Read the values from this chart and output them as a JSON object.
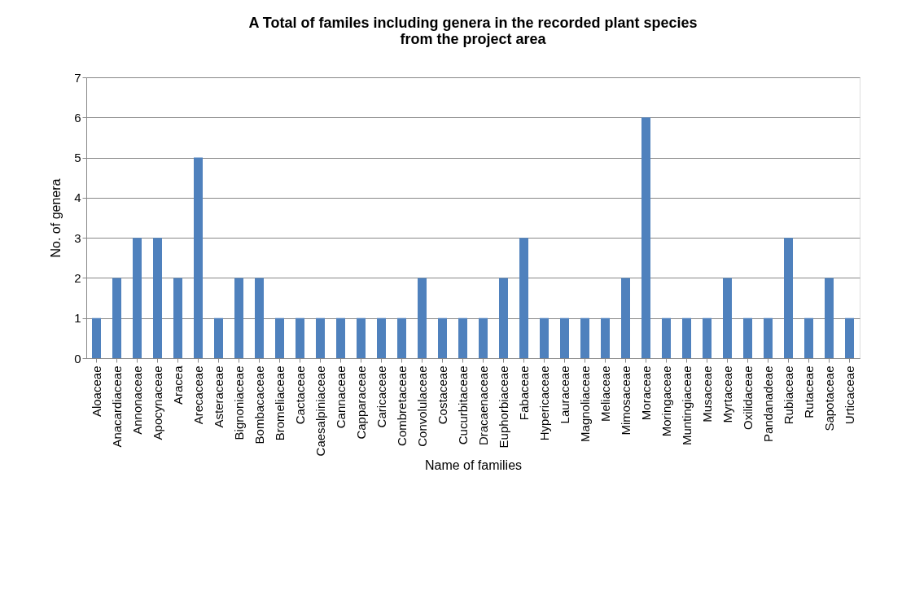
{
  "chart_data": {
    "type": "bar",
    "title": "A Total of familes including genera in the recorded plant species\nfrom the project area",
    "xlabel": "Name of families",
    "ylabel": "No. of genera",
    "categories": [
      "Aloaceae",
      "Anacardiaceae",
      "Annonaceae",
      "Apocynaceae",
      "Aracea",
      "Arecaceae",
      "Asteraceae",
      "Bignoniaceae",
      "Bombacaceae",
      "Bromeliaceae",
      "Cactaceae",
      "Caesalpiniaceae",
      "Cannaceae",
      "Capparaceae",
      "Caricaceae",
      "Combretaceae",
      "Convolulaceae",
      "Costaceae",
      "Cucurbitaceae",
      "Dracaenaceae",
      "Euphorbiaceae",
      "Fabaceae",
      "Hypericaceae",
      "Lauraceae",
      "Magnoliaceae",
      "Meliaceae",
      "Mimosaceae",
      "Moraceae",
      "Moringaceae",
      "Muntingiaceae",
      "Musaceae",
      "Myrtaceae",
      "Oxilidaceae",
      "Pandanadeae",
      "Rubiaceae",
      "Rutaceae",
      "Sapotaceae",
      "Urticaceae"
    ],
    "values": [
      1,
      2,
      3,
      3,
      2,
      5,
      1,
      2,
      2,
      1,
      1,
      1,
      1,
      1,
      1,
      1,
      2,
      1,
      1,
      1,
      2,
      3,
      1,
      1,
      1,
      1,
      2,
      6,
      1,
      1,
      1,
      2,
      1,
      1,
      3,
      1,
      2,
      1
    ],
    "color": "#4f81bd",
    "ylim": [
      0,
      7
    ],
    "yticks": [
      0,
      1,
      2,
      3,
      4,
      5,
      6,
      7
    ],
    "grid": "y"
  }
}
